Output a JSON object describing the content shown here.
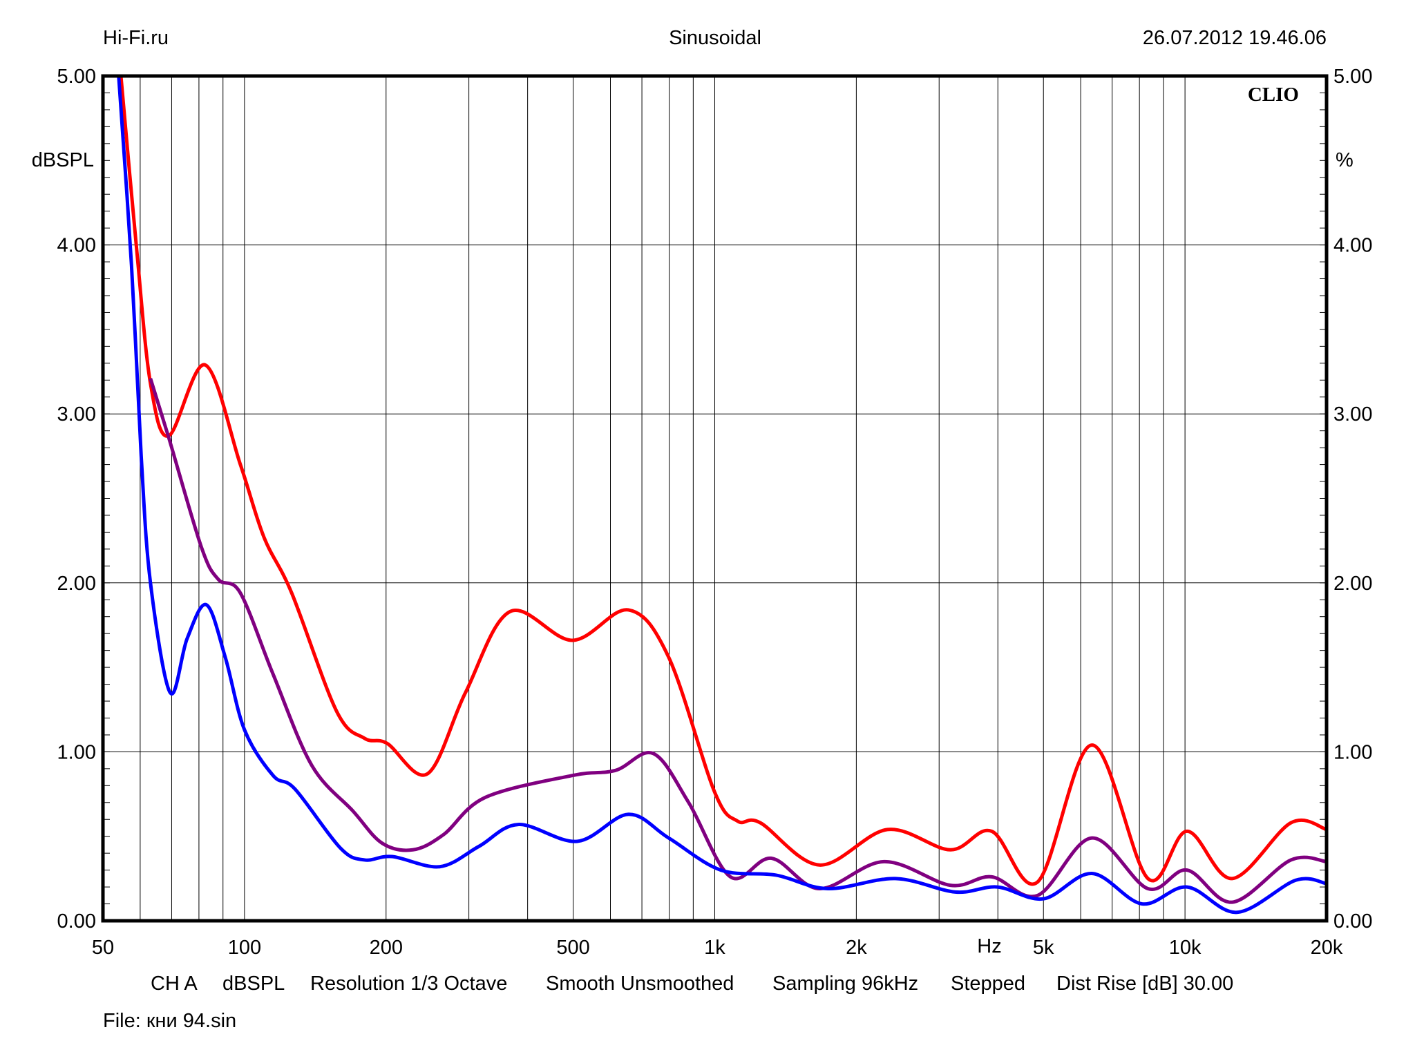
{
  "header": {
    "left": "Hi-Fi.ru",
    "center": "Sinusoidal",
    "right": "26.07.2012 19.46.06"
  },
  "brand": "CLIO",
  "footer": {
    "items": [
      "CH A",
      "dBSPL",
      "Resolution 1/3 Octave",
      "Smooth Unsmoothed",
      "Sampling 96kHz",
      "Stepped",
      "Dist Rise [dB] 30.00"
    ],
    "file": "File: кни 94.sin"
  },
  "chart_data": {
    "type": "line",
    "xscale": "log",
    "xlim": [
      50,
      20000
    ],
    "ylim": [
      0,
      5
    ],
    "grid": true,
    "xlabel": "Hz",
    "ylabel_left": "dBSPL",
    "ylabel_right": "%",
    "x_ticks": [
      50,
      100,
      200,
      500,
      1000,
      2000,
      5000,
      10000,
      20000
    ],
    "x_tick_labels": [
      "50",
      "100",
      "200",
      "500",
      "1k",
      "2k",
      "5k",
      "10k",
      "20k"
    ],
    "y_ticks": [
      0,
      1,
      2,
      3,
      4,
      5
    ],
    "y_tick_labels": [
      "0.00",
      "1.00",
      "2.00",
      "3.00",
      "4.00",
      "5.00"
    ],
    "series": [
      {
        "color": "#ff0000",
        "points": [
          [
            54.6,
            5.0
          ],
          [
            58.9,
            3.99
          ],
          [
            63.1,
            3.18
          ],
          [
            69,
            2.87
          ],
          [
            82.5,
            3.29
          ],
          [
            98,
            2.7
          ],
          [
            110,
            2.27
          ],
          [
            126,
            1.94
          ],
          [
            157,
            1.24
          ],
          [
            180,
            1.08
          ],
          [
            201,
            1.05
          ],
          [
            245,
            0.87
          ],
          [
            295,
            1.35
          ],
          [
            367,
            1.83
          ],
          [
            498,
            1.66
          ],
          [
            655,
            1.84
          ],
          [
            798,
            1.56
          ],
          [
            1000,
            0.76
          ],
          [
            1118,
            0.59
          ],
          [
            1250,
            0.58
          ],
          [
            1670,
            0.33
          ],
          [
            2330,
            0.54
          ],
          [
            3170,
            0.42
          ],
          [
            3880,
            0.53
          ],
          [
            4860,
            0.23
          ],
          [
            6340,
            1.04
          ],
          [
            8340,
            0.25
          ],
          [
            10100,
            0.53
          ],
          [
            12600,
            0.25
          ],
          [
            16800,
            0.58
          ],
          [
            20000,
            0.54
          ]
        ]
      },
      {
        "color": "#800080",
        "points": [
          [
            63.1,
            3.21
          ],
          [
            69,
            2.86
          ],
          [
            81,
            2.21
          ],
          [
            88,
            2.02
          ],
          [
            98,
            1.94
          ],
          [
            115,
            1.46
          ],
          [
            139,
            0.92
          ],
          [
            170,
            0.65
          ],
          [
            196,
            0.46
          ],
          [
            228,
            0.42
          ],
          [
            265,
            0.51
          ],
          [
            325,
            0.73
          ],
          [
            498,
            0.86
          ],
          [
            615,
            0.89
          ],
          [
            740,
            0.99
          ],
          [
            880,
            0.7
          ],
          [
            1080,
            0.26
          ],
          [
            1320,
            0.37
          ],
          [
            1670,
            0.19
          ],
          [
            2290,
            0.35
          ],
          [
            3170,
            0.21
          ],
          [
            3880,
            0.26
          ],
          [
            4860,
            0.15
          ],
          [
            6340,
            0.49
          ],
          [
            8340,
            0.19
          ],
          [
            10100,
            0.3
          ],
          [
            12600,
            0.11
          ],
          [
            16800,
            0.36
          ],
          [
            20000,
            0.35
          ]
        ]
      },
      {
        "color": "#0000ff",
        "points": [
          [
            54,
            5.0
          ],
          [
            57.5,
            3.88
          ],
          [
            60.3,
            2.75
          ],
          [
            63.1,
            2.0
          ],
          [
            69.5,
            1.35
          ],
          [
            75.5,
            1.67
          ],
          [
            83,
            1.87
          ],
          [
            91,
            1.56
          ],
          [
            100,
            1.13
          ],
          [
            115,
            0.86
          ],
          [
            128,
            0.78
          ],
          [
            160,
            0.43
          ],
          [
            180,
            0.36
          ],
          [
            206,
            0.38
          ],
          [
            260,
            0.32
          ],
          [
            315,
            0.44
          ],
          [
            382,
            0.57
          ],
          [
            510,
            0.47
          ],
          [
            655,
            0.63
          ],
          [
            798,
            0.49
          ],
          [
            1030,
            0.3
          ],
          [
            1350,
            0.27
          ],
          [
            1740,
            0.19
          ],
          [
            2420,
            0.25
          ],
          [
            3250,
            0.17
          ],
          [
            3990,
            0.2
          ],
          [
            5000,
            0.13
          ],
          [
            6340,
            0.28
          ],
          [
            8100,
            0.1
          ],
          [
            10100,
            0.2
          ],
          [
            12900,
            0.05
          ],
          [
            17200,
            0.24
          ],
          [
            20000,
            0.22
          ]
        ]
      }
    ]
  }
}
